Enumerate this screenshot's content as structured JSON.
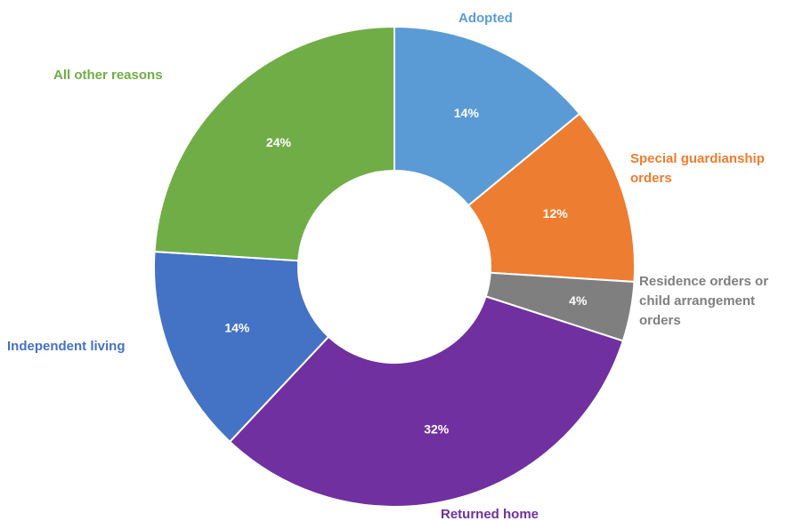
{
  "chart_data": {
    "type": "donut",
    "categories": [
      "Adopted",
      "Special guardianship orders",
      "Residence orders or child arrangement orders",
      "Returned home",
      "Independent living",
      "All other reasons"
    ],
    "values": [
      14,
      12,
      4,
      32,
      14,
      24
    ],
    "value_labels": [
      "14%",
      "12%",
      "4%",
      "32%",
      "14%",
      "24%"
    ],
    "colors": [
      "#5b9bd5",
      "#ed7d31",
      "#7f7f7f",
      "#7030a0",
      "#4472c4",
      "#70ad47"
    ]
  }
}
